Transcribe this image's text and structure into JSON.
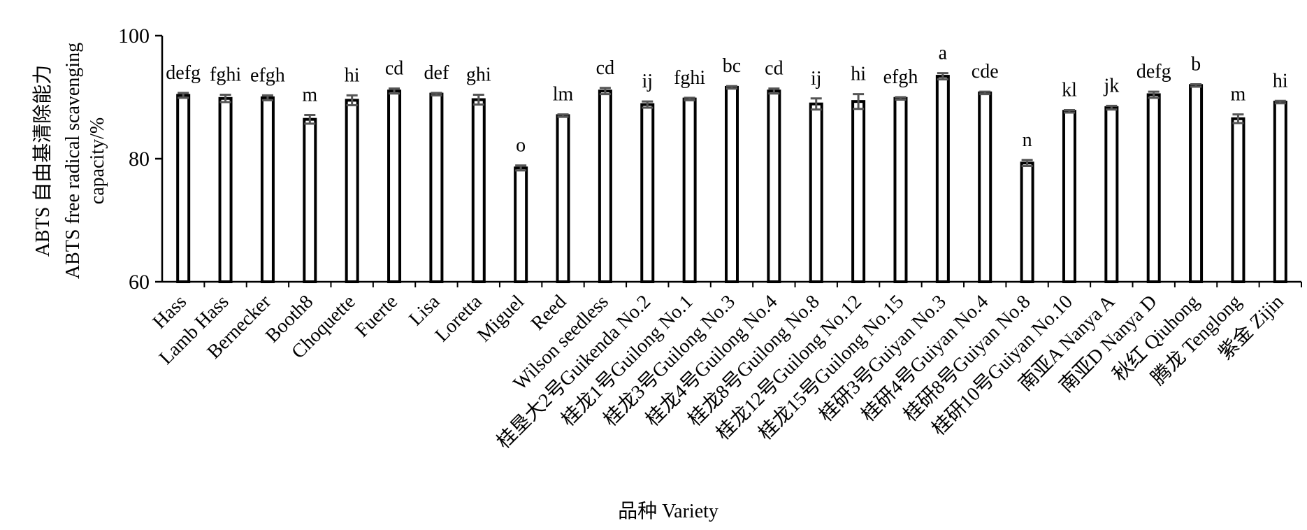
{
  "chart_data": {
    "type": "bar",
    "ylabel_cn": "ABTS 自由基清除能力",
    "ylabel_en_1": "ABTS free radical scavenging",
    "ylabel_en_2": "capacity/%",
    "xlabel": "品种 Variety",
    "ylim": [
      60,
      100
    ],
    "yticks": [
      60,
      80,
      100
    ],
    "grid": false,
    "legend": "none",
    "bar_fill": "#ffffff",
    "bar_stroke": "#000000",
    "errorbar_color": "#555555",
    "categories": [
      "Hass",
      "Lamb Hass",
      "Bernecker",
      "Booth8",
      "Choquette",
      "Fuerte",
      "Lisa",
      "Loretta",
      "Miguel",
      "Reed",
      "Wilson seedless",
      "桂垦大2号Guikenda No.2",
      "桂龙1号Guilong No.1",
      "桂龙3号Guilong No.3",
      "桂龙4号Guilong No.4",
      "桂龙8号Guilong No.8",
      "桂龙12号Guilong No.12",
      "桂龙15号Guilong No.15",
      "桂研3号Guiyan No.3",
      "桂研4号Guiyan No.4",
      "桂研8号Guiyan No.8",
      "桂研10号Guiyan No.10",
      "南亚A Nanya A",
      "南亚D Nanya D",
      "秋红 Qiuhong",
      "腾龙 Tenglong",
      "紫金 Zijin"
    ],
    "values": [
      90.3,
      89.8,
      89.9,
      86.4,
      89.5,
      91.0,
      90.5,
      89.6,
      78.5,
      87.0,
      91.0,
      88.8,
      89.7,
      91.6,
      91.0,
      88.9,
      89.3,
      89.8,
      93.4,
      90.7,
      79.3,
      87.7,
      88.3,
      90.4,
      91.9,
      86.5,
      89.2
    ],
    "errors": [
      0.4,
      0.6,
      0.4,
      0.7,
      0.8,
      0.4,
      0.2,
      0.8,
      0.4,
      0.2,
      0.5,
      0.5,
      0.2,
      0.2,
      0.4,
      0.9,
      1.2,
      0.2,
      0.5,
      0.2,
      0.5,
      0.2,
      0.3,
      0.5,
      0.2,
      0.7,
      0.2
    ],
    "significance": [
      "defg",
      "fghi",
      "efgh",
      "m",
      "hi",
      "cd",
      "def",
      "ghi",
      "o",
      "lm",
      "cd",
      "ij",
      "fghi",
      "bc",
      "cd",
      "ij",
      "hi",
      "efgh",
      "a",
      "cde",
      "n",
      "kl",
      "jk",
      "defg",
      "b",
      "m",
      "hi"
    ]
  }
}
